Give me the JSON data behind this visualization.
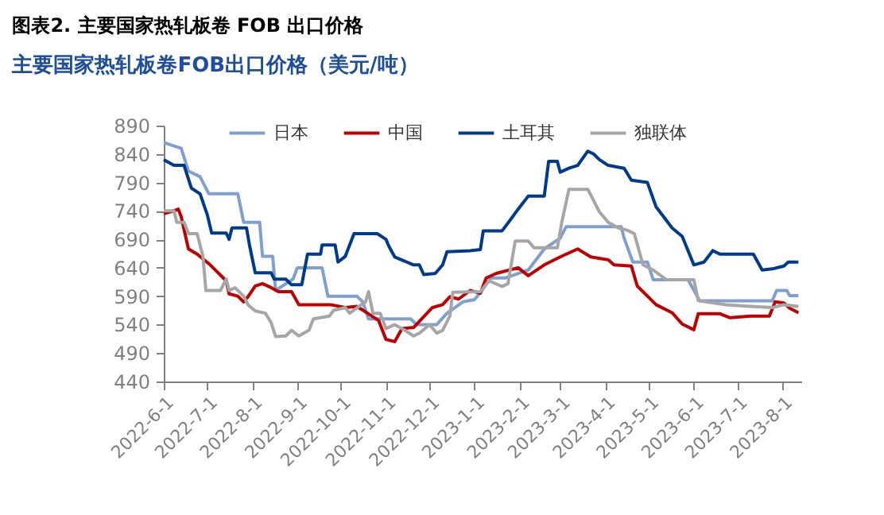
{
  "chart_data": {
    "type": "line",
    "title": "图表2.    主要国家热轧板卷 FOB 出口价格",
    "subtitle": "主要国家热轧板卷FOB出口价格（美元/吨）",
    "series": [
      {
        "name": "日本",
        "color": "#7f9fcf",
        "x": [
          "2022-06-01",
          "2022-06-13",
          "2022-06-18",
          "2022-06-26",
          "2022-07-02",
          "2022-07-22",
          "2022-07-26",
          "2022-08-06",
          "2022-08-08",
          "2022-08-15",
          "2022-08-17",
          "2022-08-29",
          "2022-09-01",
          "2022-09-18",
          "2022-09-22",
          "2022-10-12",
          "2022-10-16",
          "2022-10-20",
          "2022-11-18",
          "2022-11-22",
          "2022-12-06",
          "2022-12-13",
          "2022-12-24",
          "2023-01-01",
          "2023-01-06",
          "2023-01-12",
          "2023-01-22",
          "2023-01-31",
          "2023-02-07",
          "2023-02-18",
          "2023-03-01",
          "2023-03-05",
          "2023-04-12",
          "2023-04-14",
          "2023-04-20",
          "2023-04-30",
          "2023-05-04",
          "2023-05-28",
          "2023-06-05",
          "2023-07-25",
          "2023-07-28",
          "2023-08-04",
          "2023-08-06",
          "2023-08-12"
        ],
        "values": [
          860,
          850,
          810,
          800,
          770,
          770,
          720,
          720,
          660,
          660,
          600,
          620,
          640,
          640,
          590,
          590,
          580,
          550,
          550,
          540,
          540,
          560,
          580,
          584,
          600,
          622,
          622,
          630,
          636,
          673,
          692,
          712,
          712,
          692,
          650,
          650,
          619,
          619,
          582,
          582,
          600,
          600,
          591,
          591
        ]
      },
      {
        "name": "中国",
        "color": "#c00000",
        "x": [
          "2022-06-01",
          "2022-06-08",
          "2022-06-11",
          "2022-06-13",
          "2022-06-18",
          "2022-06-24",
          "2022-07-03",
          "2022-07-12",
          "2022-07-14",
          "2022-07-16",
          "2022-07-22",
          "2022-07-26",
          "2022-07-29",
          "2022-08-03",
          "2022-08-08",
          "2022-08-14",
          "2022-08-19",
          "2022-08-28",
          "2022-09-02",
          "2022-09-24",
          "2022-10-04",
          "2022-10-12",
          "2022-10-20",
          "2022-10-27",
          "2022-11-01",
          "2022-11-07",
          "2022-11-12",
          "2022-11-20",
          "2022-12-03",
          "2022-12-10",
          "2022-12-15",
          "2022-12-21",
          "2022-12-29",
          "2023-01-05",
          "2023-01-09",
          "2023-01-16",
          "2023-01-31",
          "2023-02-07",
          "2023-02-18",
          "2023-03-01",
          "2023-03-13",
          "2023-03-22",
          "2023-04-03",
          "2023-04-07",
          "2023-04-19",
          "2023-04-23",
          "2023-05-06",
          "2023-05-17",
          "2023-05-24",
          "2023-06-01",
          "2023-06-04",
          "2023-06-19",
          "2023-06-26",
          "2023-07-10",
          "2023-07-23",
          "2023-07-27",
          "2023-08-02",
          "2023-08-06",
          "2023-08-12"
        ],
        "values": [
          735,
          740,
          743,
          730,
          673,
          664,
          645,
          622,
          617,
          594,
          590,
          580,
          589,
          608,
          612,
          605,
          598,
          598,
          575,
          575,
          570,
          572,
          559,
          547,
          514,
          510,
          533,
          535,
          570,
          575,
          589,
          585,
          600,
          595,
          622,
          630,
          640,
          626,
          645,
          659,
          673,
          659,
          654,
          645,
          643,
          608,
          575,
          561,
          541,
          531,
          559,
          559,
          552,
          555,
          555,
          580,
          578,
          569,
          561
        ]
      },
      {
        "name": "土耳其",
        "color": "#003a8c",
        "x": [
          "2022-06-01",
          "2022-06-08",
          "2022-06-15",
          "2022-06-20",
          "2022-06-26",
          "2022-07-01",
          "2022-07-04",
          "2022-07-14",
          "2022-07-16",
          "2022-07-18",
          "2022-07-28",
          "2022-07-30",
          "2022-08-03",
          "2022-08-14",
          "2022-08-16",
          "2022-08-24",
          "2022-08-28",
          "2022-09-04",
          "2022-09-08",
          "2022-09-17",
          "2022-09-18",
          "2022-09-27",
          "2022-09-29",
          "2022-10-04",
          "2022-10-10",
          "2022-10-26",
          "2022-11-01",
          "2022-11-03",
          "2022-11-07",
          "2022-11-20",
          "2022-11-24",
          "2022-11-27",
          "2022-12-05",
          "2022-12-10",
          "2022-12-13",
          "2022-12-29",
          "2023-01-05",
          "2023-01-07",
          "2023-01-20",
          "2023-01-27",
          "2023-01-31",
          "2023-02-07",
          "2023-02-18",
          "2023-02-21",
          "2023-02-27",
          "2023-03-01",
          "2023-03-07",
          "2023-03-13",
          "2023-03-20",
          "2023-03-24",
          "2023-03-28",
          "2023-04-03",
          "2023-04-14",
          "2023-04-19",
          "2023-04-30",
          "2023-05-06",
          "2023-05-17",
          "2023-05-24",
          "2023-06-01",
          "2023-06-08",
          "2023-06-14",
          "2023-06-19",
          "2023-07-12",
          "2023-07-18",
          "2023-07-25",
          "2023-08-02",
          "2023-08-05",
          "2023-08-12"
        ],
        "values": [
          830,
          820,
          820,
          780,
          770,
          733,
          701,
          701,
          690,
          710,
          710,
          680,
          631,
          631,
          620,
          620,
          610,
          610,
          664,
          664,
          680,
          680,
          650,
          660,
          700,
          700,
          690,
          678,
          659,
          645,
          645,
          628,
          630,
          645,
          668,
          670,
          672,
          705,
          705,
          729,
          743,
          766,
          766,
          827,
          827,
          808,
          815,
          820,
          845,
          840,
          830,
          820,
          815,
          794,
          790,
          747,
          710,
          695,
          645,
          650,
          670,
          664,
          664,
          636,
          638,
          643,
          650,
          650
        ]
      },
      {
        "name": "独联体",
        "color": "#a6a6a6",
        "x": [
          "2022-06-01",
          "2022-06-08",
          "2022-06-10",
          "2022-06-15",
          "2022-06-18",
          "2022-06-24",
          "2022-06-28",
          "2022-06-30",
          "2022-07-10",
          "2022-07-14",
          "2022-07-16",
          "2022-07-20",
          "2022-07-26",
          "2022-07-29",
          "2022-08-03",
          "2022-08-10",
          "2022-08-14",
          "2022-08-17",
          "2022-08-24",
          "2022-08-28",
          "2022-09-02",
          "2022-09-09",
          "2022-09-12",
          "2022-09-23",
          "2022-09-26",
          "2022-10-04",
          "2022-10-07",
          "2022-10-15",
          "2022-10-18",
          "2022-10-20",
          "2022-10-23",
          "2022-10-28",
          "2022-11-01",
          "2022-11-07",
          "2022-11-14",
          "2022-11-20",
          "2022-11-24",
          "2022-12-01",
          "2022-12-06",
          "2022-12-10",
          "2022-12-15",
          "2022-12-17",
          "2023-01-05",
          "2023-01-11",
          "2023-01-20",
          "2023-01-24",
          "2023-01-29",
          "2023-02-07",
          "2023-02-11",
          "2023-02-27",
          "2023-03-02",
          "2023-03-07",
          "2023-03-20",
          "2023-03-28",
          "2023-04-03",
          "2023-04-10",
          "2023-04-16",
          "2023-04-21",
          "2023-04-27",
          "2023-05-04",
          "2023-05-13",
          "2023-06-01",
          "2023-06-04",
          "2023-06-23",
          "2023-07-10",
          "2023-07-25",
          "2023-08-02",
          "2023-08-12"
        ],
        "values": [
          740,
          740,
          720,
          720,
          700,
          700,
          660,
          600,
          600,
          620,
          600,
          605,
          590,
          575,
          564,
          560,
          543,
          519,
          520,
          530,
          520,
          530,
          550,
          555,
          565,
          570,
          560,
          575,
          580,
          598,
          560,
          560,
          533,
          540,
          530,
          520,
          525,
          540,
          525,
          530,
          555,
          597,
          598,
          617,
          607,
          612,
          687,
          687,
          675,
          675,
          719,
          778,
          778,
          738,
          720,
          710,
          706,
          700,
          645,
          636,
          619,
          619,
          582,
          575,
          572,
          570,
          575,
          572
        ]
      }
    ],
    "xlim": [
      "2022-06-01",
      "2023-08-14"
    ],
    "xticks": [
      {
        "value": "2022-06-01",
        "label": "2022-6-1"
      },
      {
        "value": "2022-07-01",
        "label": "2022-7-1"
      },
      {
        "value": "2022-08-01",
        "label": "2022-8-1"
      },
      {
        "value": "2022-09-01",
        "label": "2022-9-1"
      },
      {
        "value": "2022-10-01",
        "label": "2022-10-1"
      },
      {
        "value": "2022-11-01",
        "label": "2022-11-1"
      },
      {
        "value": "2022-12-01",
        "label": "2022-12-1"
      },
      {
        "value": "2023-01-01",
        "label": "2023-1-1"
      },
      {
        "value": "2023-02-01",
        "label": "2023-2-1"
      },
      {
        "value": "2023-03-01",
        "label": "2023-3-1"
      },
      {
        "value": "2023-04-01",
        "label": "2023-4-1"
      },
      {
        "value": "2023-05-01",
        "label": "2023-5-1"
      },
      {
        "value": "2023-06-01",
        "label": "2023-6-1"
      },
      {
        "value": "2023-07-01",
        "label": "2023-7-1"
      },
      {
        "value": "2023-08-01",
        "label": "2023-8-1"
      }
    ],
    "ylim": [
      440,
      890
    ],
    "yticks": [
      440,
      490,
      540,
      590,
      640,
      690,
      740,
      790,
      840,
      890
    ],
    "legend": "top"
  }
}
